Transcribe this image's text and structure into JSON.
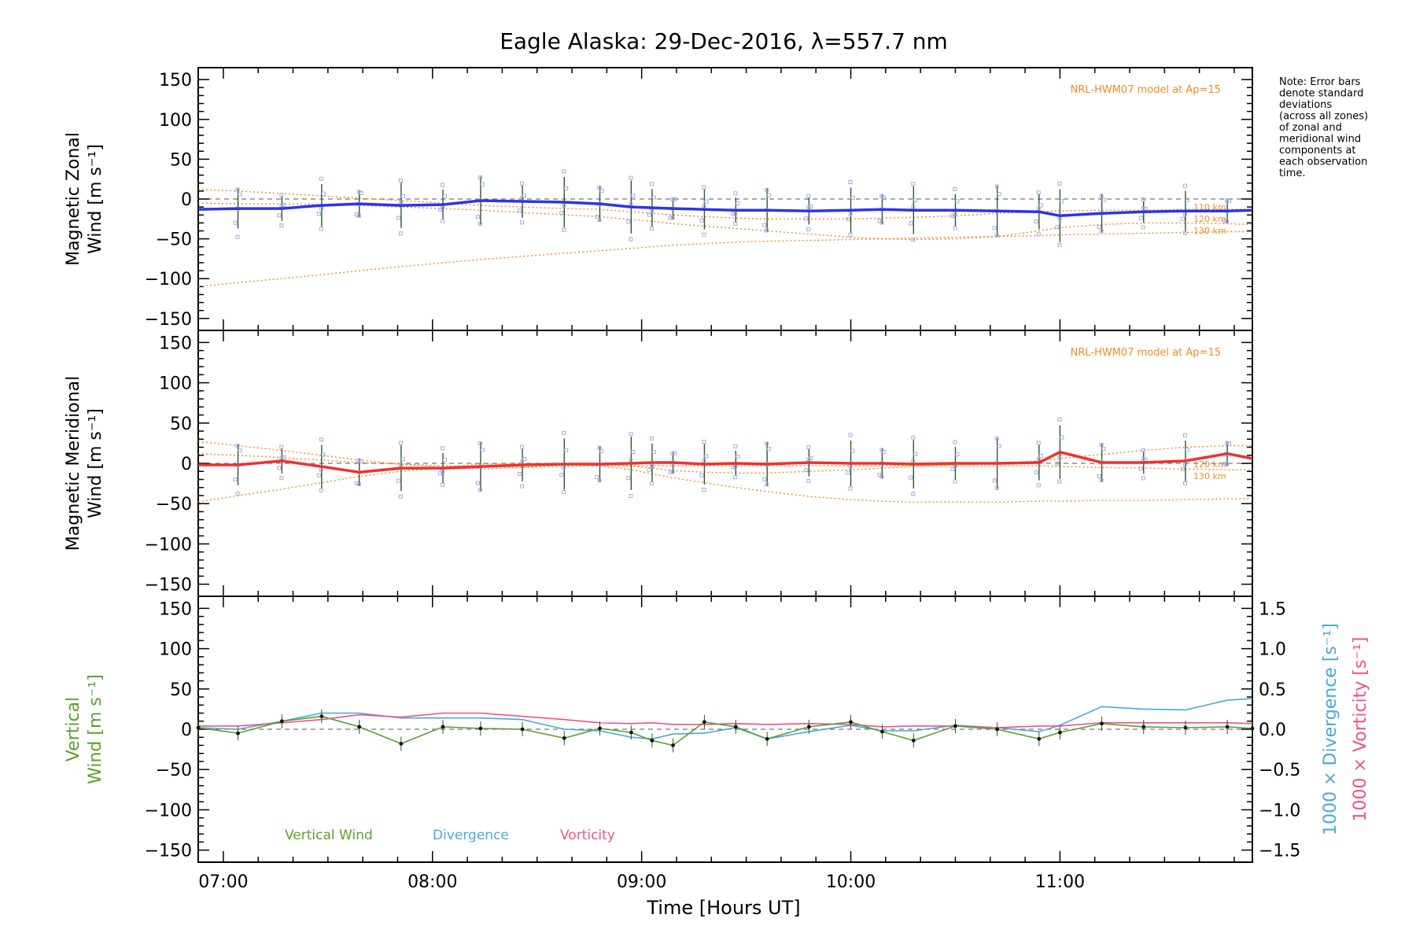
{
  "title": "Eagle Alaska: 29-Dec-2016, λ=557.7 nm",
  "note_lines": [
    "Note: Error bars",
    "denote standard",
    "deviations",
    "(across all zones)",
    "of zonal and",
    "meridional wind",
    "components at",
    "each observation",
    "time."
  ],
  "xlabel": "Time [Hours UT]",
  "x_ticks": [
    "07:00",
    "08:00",
    "09:00",
    "10:00",
    "11:00"
  ],
  "y_ticks": [
    "150",
    "100",
    "50",
    "0",
    "−50",
    "−100",
    "−150"
  ],
  "right_ticks": [
    "1.5",
    "1.0",
    "0.5",
    "0.0",
    "−0.5",
    "−1.0",
    "−1.5"
  ],
  "colors": {
    "zonal": "#2b35e8",
    "meridional": "#f03030",
    "vertical": "#5aa02c",
    "divergence": "#4aa8d8",
    "vorticity": "#f0508a",
    "model": "#f08a2a",
    "samples": "#a8a8e8"
  },
  "chart_data": [
    {
      "type": "line",
      "ylabel_lines": [
        "Magnetic Zonal",
        "Wind [m s⁻¹]"
      ],
      "model_label": "NRL-HWM07 model at Ap=15",
      "km_labels": [
        "110 km",
        "120 km",
        "130 km"
      ],
      "ylim": [
        -165,
        165
      ],
      "xlim": [
        6.88,
        11.92
      ],
      "x": [
        6.88,
        7.07,
        7.28,
        7.47,
        7.65,
        7.85,
        8.05,
        8.23,
        8.43,
        8.63,
        8.8,
        8.95,
        9.05,
        9.15,
        9.3,
        9.45,
        9.6,
        9.8,
        10.0,
        10.15,
        10.3,
        10.5,
        10.7,
        10.9,
        11.0,
        11.2,
        11.4,
        11.6,
        11.8,
        11.92
      ],
      "series": [
        {
          "name": "zonal",
          "values": [
            -13,
            -12,
            -12,
            -8,
            -6,
            -8,
            -7,
            -2,
            -3,
            -4,
            -6,
            -10,
            -11,
            -12,
            -13,
            -14,
            -14,
            -15,
            -14,
            -13,
            -14,
            -14,
            -15,
            -16,
            -21,
            -18,
            -16,
            -15,
            -15,
            -14
          ]
        },
        {
          "name": "model-110km",
          "values": [
            12,
            10,
            7,
            4,
            1,
            -2,
            -5,
            -8,
            -10,
            -12,
            -13,
            -16,
            -18,
            -20,
            -22,
            -24,
            -25,
            -25,
            -25,
            -24,
            -23,
            -21,
            -18,
            -16,
            -15,
            -14,
            -14,
            -13,
            -13,
            -13
          ]
        },
        {
          "name": "model-120km",
          "values": [
            -5,
            -6,
            -6,
            -7,
            -8,
            -10,
            -12,
            -14,
            -17,
            -20,
            -22,
            -26,
            -28,
            -31,
            -34,
            -37,
            -40,
            -44,
            -48,
            -50,
            -51,
            -50,
            -47,
            -40,
            -36,
            -32,
            -30,
            -30,
            -31,
            -32
          ]
        },
        {
          "name": "model-130km",
          "values": [
            -110,
            -105,
            -100,
            -95,
            -90,
            -85,
            -80,
            -76,
            -72,
            -68,
            -65,
            -62,
            -60,
            -58,
            -56,
            -54,
            -53,
            -52,
            -51,
            -50,
            -49,
            -48,
            -47,
            -46,
            -45,
            -44,
            -43,
            -42,
            -41,
            -41
          ]
        }
      ]
    },
    {
      "type": "line",
      "ylabel_lines": [
        "Magnetic Meridional",
        "Wind [m s⁻¹]"
      ],
      "model_label": "NRL-HWM07 model at Ap=15",
      "km_labels": [
        "120 km",
        "130 km"
      ],
      "ylim": [
        -165,
        165
      ],
      "xlim": [
        6.88,
        11.92
      ],
      "x": [
        6.88,
        7.07,
        7.28,
        7.47,
        7.65,
        7.85,
        8.05,
        8.23,
        8.43,
        8.63,
        8.8,
        8.95,
        9.05,
        9.15,
        9.3,
        9.45,
        9.6,
        9.8,
        10.0,
        10.15,
        10.3,
        10.5,
        10.7,
        10.9,
        11.0,
        11.2,
        11.4,
        11.6,
        11.8,
        11.92
      ],
      "series": [
        {
          "name": "meridional",
          "values": [
            -2,
            -2,
            3,
            -4,
            -11,
            -6,
            -6,
            -4,
            -2,
            -1,
            -1,
            0,
            1,
            1,
            -1,
            0,
            -1,
            1,
            0,
            0,
            -1,
            0,
            0,
            1,
            14,
            1,
            1,
            3,
            12,
            6
          ]
        },
        {
          "name": "model-110km",
          "values": [
            27,
            22,
            16,
            10,
            4,
            -1,
            -5,
            -7,
            -5,
            -2,
            -1,
            -3,
            -6,
            -9,
            -11,
            -12,
            -12,
            -10,
            -8,
            -6,
            -4,
            -2,
            0,
            3,
            6,
            11,
            16,
            20,
            22,
            22
          ]
        },
        {
          "name": "model-120km",
          "values": [
            -48,
            -40,
            -32,
            -24,
            -16,
            -10,
            -5,
            -1,
            0,
            -1,
            -3,
            -8,
            -13,
            -18,
            -24,
            -30,
            -35,
            -41,
            -45,
            -47,
            -48,
            -48,
            -48,
            -47,
            -47,
            -46,
            -46,
            -45,
            -44,
            -44
          ]
        },
        {
          "name": "model-130km",
          "values": [
            12,
            10,
            7,
            4,
            1,
            -1,
            -3,
            -4,
            -5,
            -4,
            -3,
            -3,
            -3,
            -3,
            -3,
            -3,
            -3,
            -3,
            -3,
            -3,
            -3,
            -3,
            -3,
            -3,
            -4,
            -5,
            -6,
            -7,
            -8,
            -8
          ]
        }
      ]
    },
    {
      "type": "line",
      "ylabel_lines": [
        "Vertical",
        "Wind [m s⁻¹]"
      ],
      "right_label_1": "1000 × Divergence [s⁻¹]",
      "right_label_2": "1000 × Vorticity [s⁻¹]",
      "ylim": [
        -165,
        165
      ],
      "y2lim": [
        -1.65,
        1.65
      ],
      "xlim": [
        6.88,
        11.92
      ],
      "legend": [
        "Vertical Wind",
        "Divergence",
        "Vorticity"
      ],
      "x": [
        6.88,
        7.07,
        7.28,
        7.47,
        7.65,
        7.85,
        8.05,
        8.23,
        8.43,
        8.63,
        8.8,
        8.95,
        9.05,
        9.15,
        9.3,
        9.45,
        9.6,
        9.8,
        10.0,
        10.15,
        10.3,
        10.5,
        10.7,
        10.9,
        11.0,
        11.2,
        11.4,
        11.6,
        11.8,
        11.92
      ],
      "series": [
        {
          "name": "Vertical Wind",
          "values": [
            2,
            -5,
            10,
            16,
            3,
            -18,
            3,
            1,
            0,
            -11,
            1,
            -4,
            -14,
            -20,
            9,
            3,
            -12,
            3,
            9,
            -3,
            -14,
            4,
            0,
            -12,
            -4,
            7,
            3,
            2,
            3,
            1
          ]
        },
        {
          "name": "Divergence",
          "values": [
            0.02,
            0.0,
            0.1,
            0.2,
            0.2,
            0.14,
            0.14,
            0.14,
            0.12,
            0.0,
            -0.02,
            -0.1,
            -0.12,
            -0.06,
            -0.05,
            0.02,
            -0.12,
            -0.03,
            0.05,
            -0.02,
            -0.02,
            0.05,
            0.02,
            -0.03,
            0.05,
            0.28,
            0.25,
            0.24,
            0.36,
            0.38
          ]
        },
        {
          "name": "Vorticity",
          "values": [
            0.04,
            0.04,
            0.08,
            0.12,
            0.18,
            0.15,
            0.2,
            0.2,
            0.16,
            0.12,
            0.08,
            0.07,
            0.08,
            0.06,
            0.06,
            0.07,
            0.06,
            0.07,
            0.06,
            0.03,
            0.04,
            0.04,
            0.02,
            0.04,
            0.04,
            0.08,
            0.08,
            0.08,
            0.08,
            0.07
          ]
        }
      ]
    }
  ]
}
